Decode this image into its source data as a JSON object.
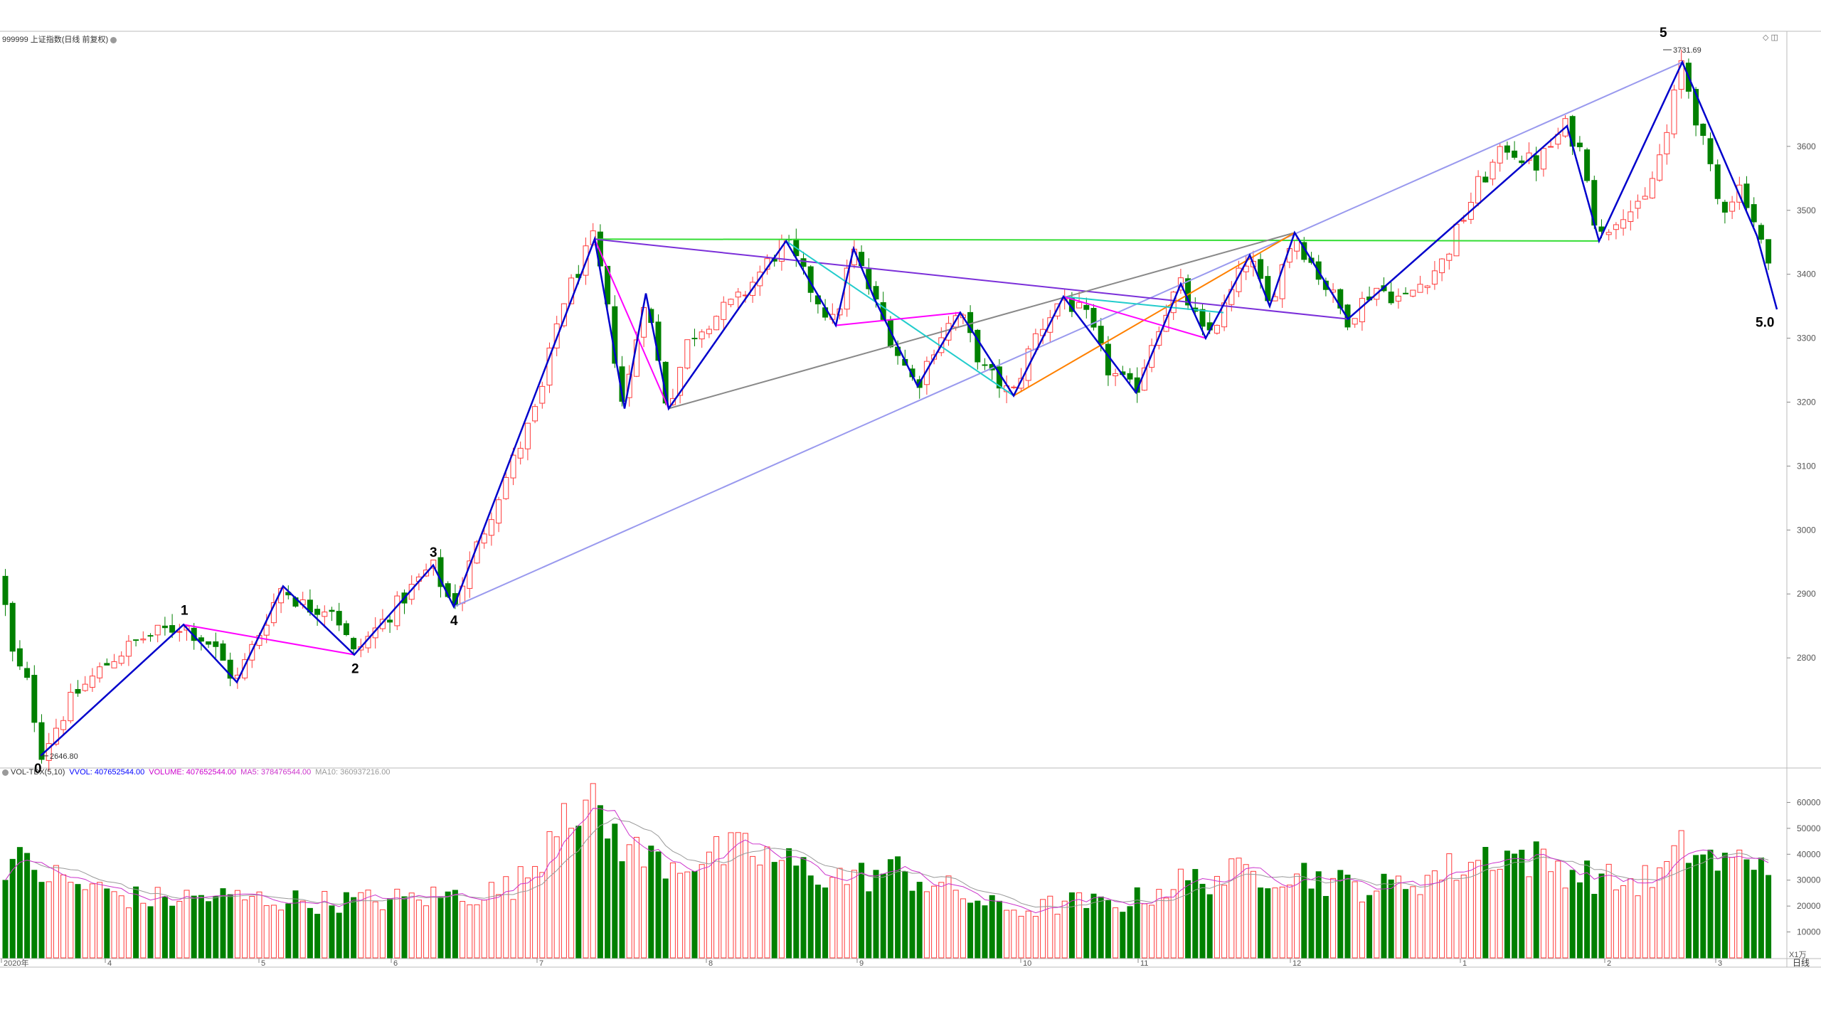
{
  "header": {
    "title": "999999 上证指数(日线 前复权)",
    "vol_indicator": "VOL-TDX(5,10)",
    "vvol": "VVOL: 407652544.00",
    "volume": "VOLUME: 407652544.00",
    "ma5": "MA5: 378476544.00",
    "ma10": "MA10: 360937216.00"
  },
  "annotations": {
    "high_label": "3731.69",
    "low_label": "2646.80",
    "wave_labels": [
      "0",
      "1",
      "2",
      "3",
      "4",
      "5",
      "5.0"
    ]
  },
  "y_ticks": [
    {
      "v": 3600,
      "label": "3600"
    },
    {
      "v": 3500,
      "label": "3500"
    },
    {
      "v": 3400,
      "label": "3400"
    },
    {
      "v": 3300,
      "label": "3300"
    },
    {
      "v": 3200,
      "label": "3200"
    },
    {
      "v": 3100,
      "label": "3100"
    },
    {
      "v": 3000,
      "label": "3000"
    },
    {
      "v": 2900,
      "label": "2900"
    },
    {
      "v": 2800,
      "label": "2800"
    }
  ],
  "vol_ticks": [
    "60000",
    "50000",
    "40000",
    "30000",
    "20000",
    "10000"
  ],
  "vol_unit": "X1万",
  "x_labels": [
    "2020年",
    "4",
    "5",
    "6",
    "7",
    "8",
    "9",
    "10",
    "11",
    "12",
    "1",
    "2",
    "3"
  ],
  "period_label": "日线",
  "colors": {
    "up": "#ff3b3b",
    "down": "#008000",
    "wave": "#0000cc",
    "magenta": "#ff00ff",
    "green_line": "#33dd33",
    "purple": "#7b2fd9",
    "cyan": "#22cccc",
    "gray": "#888888",
    "orange": "#ff8000",
    "lavender": "#9999ee",
    "ma5": "#cc33cc",
    "ma10": "#999999"
  },
  "chart_data": {
    "type": "candlestick",
    "price_range": [
      2630,
      3780
    ],
    "volume_range": [
      0,
      70000
    ],
    "pivots": [
      {
        "label": "0",
        "value": 2646.8
      },
      {
        "label": "1",
        "value": 2852
      },
      {
        "label": "2",
        "value": 2805
      },
      {
        "label": "3",
        "value": 2945
      },
      {
        "label": "4",
        "value": 2880
      },
      {
        "label": "5",
        "value": 3731.69
      },
      {
        "label": "5.0",
        "value": 3340
      }
    ],
    "high": 3731.69,
    "low": 2646.8
  }
}
